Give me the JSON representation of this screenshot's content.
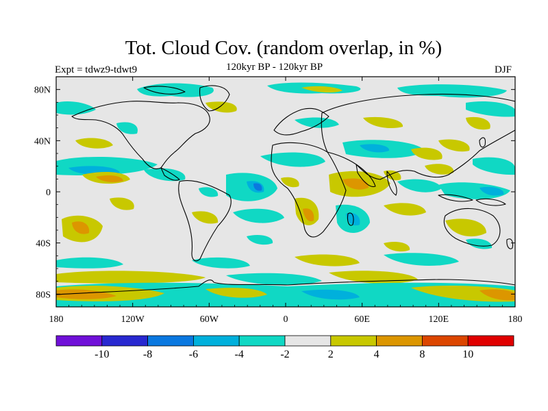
{
  "title": "Tot. Cloud Cov. (random overlap, in %)",
  "subtitle": "120kyr BP - 120kyr BP",
  "experiment": "Expt = tdwz9-tdwt9",
  "season": "DJF",
  "map": {
    "projection": "cylindrical-equidistant",
    "lon_range": [
      -180,
      180
    ],
    "lat_range": [
      -90,
      90
    ],
    "x_ticks": [
      {
        "lon": -180,
        "label": "180"
      },
      {
        "lon": -120,
        "label": "120W"
      },
      {
        "lon": -60,
        "label": "60W"
      },
      {
        "lon": 0,
        "label": "0"
      },
      {
        "lon": 60,
        "label": "60E"
      },
      {
        "lon": 120,
        "label": "120E"
      },
      {
        "lon": 180,
        "label": "180"
      }
    ],
    "y_ticks": [
      {
        "lat": 80,
        "label": "80N"
      },
      {
        "lat": 40,
        "label": "40N"
      },
      {
        "lat": 0,
        "label": "0"
      },
      {
        "lat": -40,
        "label": "40S"
      },
      {
        "lat": -80,
        "label": "80S"
      }
    ],
    "background_color": "#e6e6e6",
    "coastline_color": "#000000"
  },
  "colorbar": {
    "colors": [
      "#7010d8",
      "#2828d0",
      "#0a78e0",
      "#00b0dc",
      "#10d8c4",
      "#e6e6e6",
      "#c8c800",
      "#dc9600",
      "#dc4600",
      "#e00000"
    ],
    "labels": [
      "-10",
      "-8",
      "-6",
      "-4",
      "-2",
      "2",
      "4",
      "8",
      "10"
    ]
  }
}
